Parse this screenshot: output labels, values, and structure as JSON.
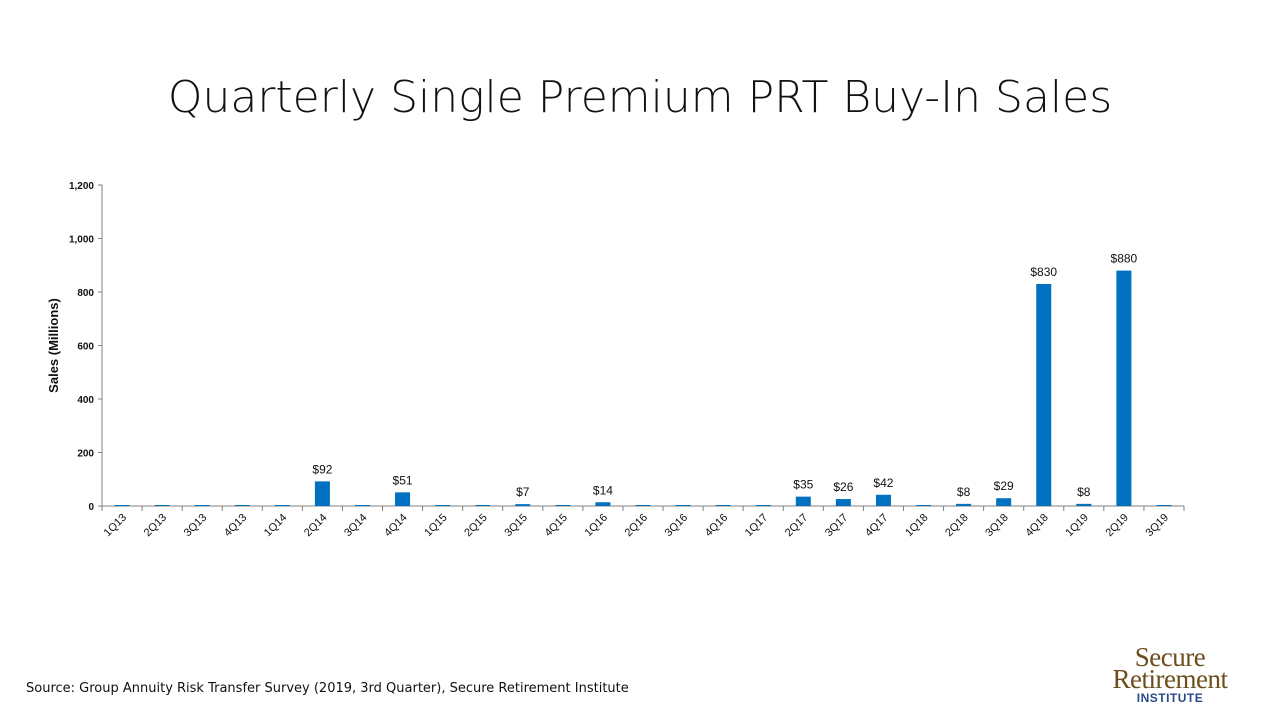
{
  "page_title": "Quarterly Single Premium PRT Buy-In Sales",
  "source_note": "Source: Group Annuity Risk Transfer Survey (2019, 3rd Quarter), Secure Retirement Institute",
  "logo": {
    "line1": "Secure",
    "line2": "Retirement",
    "line3": "INSTITUTE"
  },
  "colors": {
    "bar": "#0070C0",
    "axis": "#808080",
    "text": "#111111"
  },
  "chart_data": {
    "type": "bar",
    "title": "",
    "xlabel": "",
    "ylabel": "Sales (Millions)",
    "ylim": [
      0,
      1200
    ],
    "yticks": [
      0,
      200,
      400,
      600,
      800,
      1000,
      1200
    ],
    "ytick_labels": [
      "0",
      "200",
      "400",
      "600",
      "800",
      "1,000",
      "1,200"
    ],
    "grid": false,
    "categories": [
      "1Q13",
      "2Q13",
      "3Q13",
      "4Q13",
      "1Q14",
      "2Q14",
      "3Q14",
      "4Q14",
      "1Q15",
      "2Q15",
      "3Q15",
      "4Q15",
      "1Q16",
      "2Q16",
      "3Q16",
      "4Q16",
      "1Q17",
      "2Q17",
      "3Q17",
      "4Q17",
      "1Q18",
      "2Q18",
      "3Q18",
      "4Q18",
      "1Q19",
      "2Q19",
      "3Q19"
    ],
    "values": [
      0,
      0,
      0,
      0,
      0,
      92,
      0,
      51,
      0,
      0,
      7,
      0,
      14,
      0,
      0,
      0,
      0,
      35,
      26,
      42,
      0,
      8,
      29,
      830,
      8,
      880,
      0
    ],
    "data_labels": [
      "",
      "",
      "",
      "",
      "",
      "$92",
      "",
      "$51",
      "",
      "",
      "$7",
      "",
      "$14",
      "",
      "",
      "",
      "",
      "$35",
      "$26",
      "$42",
      "",
      "$8",
      "$29",
      "$830",
      "$8",
      "$880",
      ""
    ]
  }
}
